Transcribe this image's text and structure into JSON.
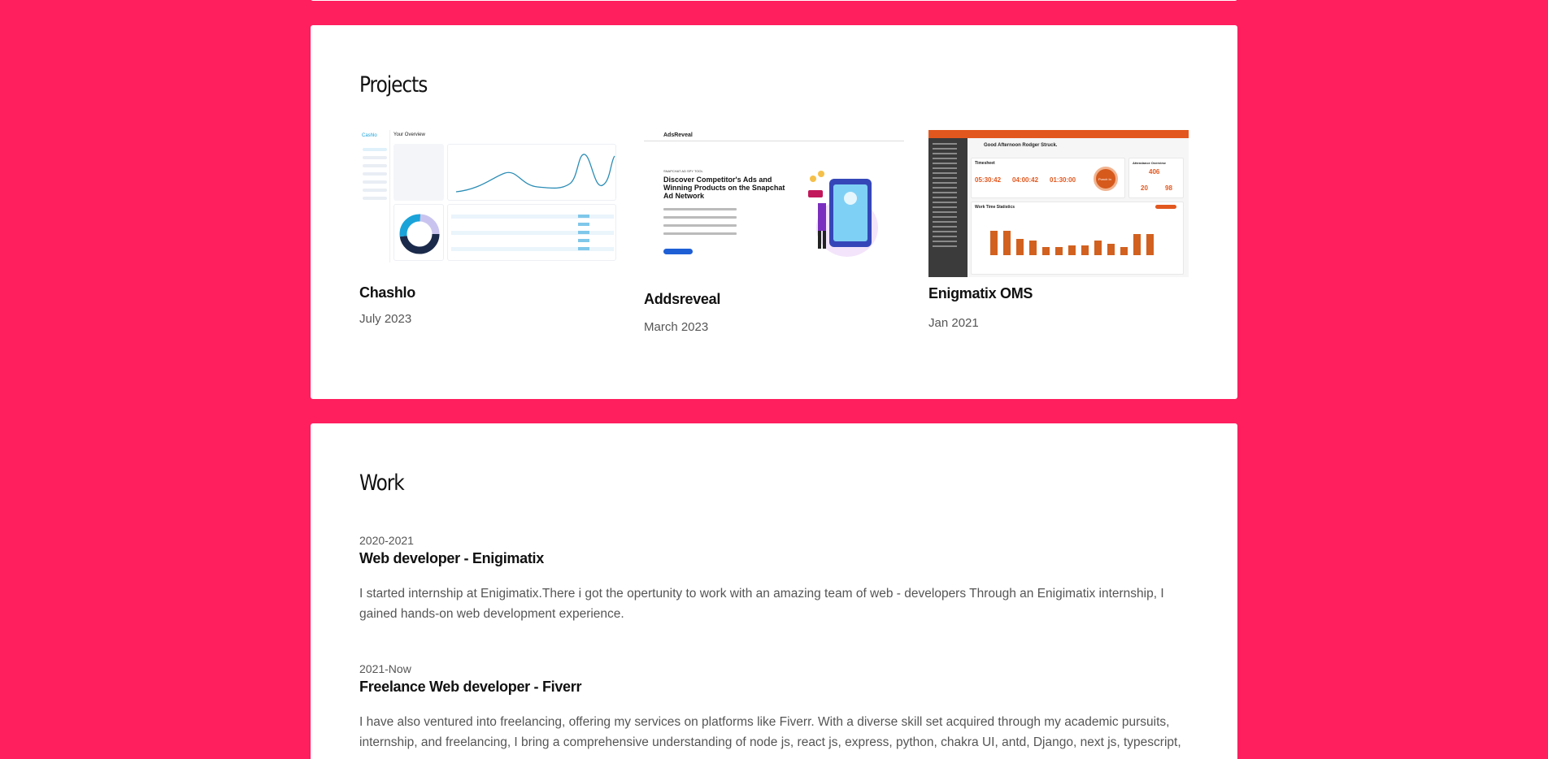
{
  "projects": {
    "title": "Projects",
    "items": [
      {
        "name": "Chashlo",
        "date": "July 2023",
        "thumb_brand": "Cashlo",
        "thumb_header": "Your Overview"
      },
      {
        "name": "Addsreveal",
        "date": "March 2023",
        "thumb_brand": "AdsReveal",
        "thumb_kicker": "SNAPCHAT AD SPY TOOL",
        "thumb_headline": "Discover Competitor's Ads and Winning Products on the Snapchat Ad Network"
      },
      {
        "name": "Enigmatix OMS",
        "date": "Jan 2021",
        "thumb_greeting": "Good Afternoon Rodger Struck.",
        "thumb_sec1": "Timesheet",
        "thumb_sec2": "Attendance Overview",
        "thumb_chart": "Work Time Statistics",
        "thumb_t1": "05:30:42",
        "thumb_t2": "04:00:42",
        "thumb_t3": "01:30:00",
        "thumb_total": "406",
        "thumb_n1": "20",
        "thumb_n2": "98",
        "thumb_btn": "Punch In"
      }
    ]
  },
  "work": {
    "title": "Work",
    "jobs": [
      {
        "period": "2020-2021",
        "title": "Web developer - Enigimatix",
        "description": "I started internship at Enigimatix.There i got the opertunity to work with an amazing team of web - developers Through an Enigimatix internship, I gained hands-on web development experience."
      },
      {
        "period": "2021-Now",
        "title": "Freelance Web developer - Fiverr",
        "description": "I have also ventured into freelancing, offering my services on platforms like Fiverr. With a diverse skill set acquired through my academic pursuits, internship, and freelancing, I bring a comprehensive understanding of node js, react js, express, python, chakra UI, antd, Django, next js, typescript,"
      }
    ]
  },
  "colors": {
    "background": "#ff1e5e",
    "card": "#ffffff",
    "accent_orange": "#e2571e",
    "accent_blue": "#1aa3d9"
  }
}
